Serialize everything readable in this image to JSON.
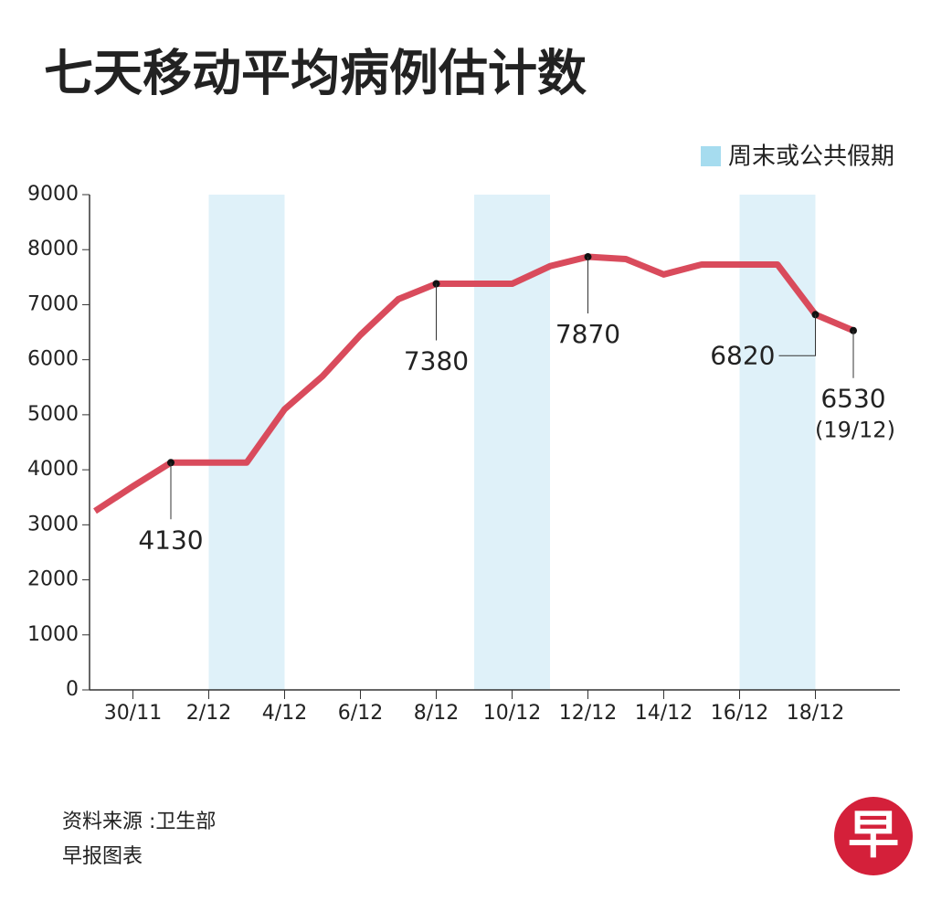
{
  "chart_data": {
    "type": "line",
    "title": "七天移动平均病例估计数",
    "categories": [
      null,
      "30/11",
      null,
      "2/12",
      null,
      "4/12",
      null,
      "6/12",
      null,
      "8/12",
      null,
      "10/12",
      null,
      "12/12",
      null,
      "14/12",
      null,
      "16/12",
      null,
      "18/12",
      null
    ],
    "series": [
      {
        "name": "七天移动平均病例估计数",
        "color": "#d94b5c",
        "values": [
          3250,
          3700,
          4130,
          4130,
          4130,
          5100,
          5700,
          6450,
          7100,
          7380,
          7380,
          7380,
          7700,
          7870,
          7830,
          7550,
          7730,
          7730,
          7730,
          6820,
          6530
        ],
        "value_labels": [
          null,
          null,
          "4130",
          null,
          null,
          null,
          null,
          null,
          null,
          "7380",
          null,
          null,
          null,
          "7870",
          null,
          null,
          null,
          null,
          null,
          "6820",
          "6530"
        ]
      }
    ],
    "end_note": "(19/12)",
    "shaded": {
      "name": "周末或公共假期",
      "color": "#dff1f9",
      "legend_color": "#a6dcef",
      "days": [
        false,
        false,
        false,
        true,
        true,
        false,
        false,
        false,
        false,
        false,
        true,
        true,
        false,
        false,
        false,
        false,
        false,
        true,
        true,
        false,
        false
      ]
    },
    "ylim": [
      0,
      9000
    ],
    "yticks": [
      0,
      1000,
      2000,
      3000,
      4000,
      5000,
      6000,
      7000,
      8000,
      9000
    ],
    "source": "资料来源 :卫生部",
    "credit": "早报图表",
    "logo": "早"
  }
}
